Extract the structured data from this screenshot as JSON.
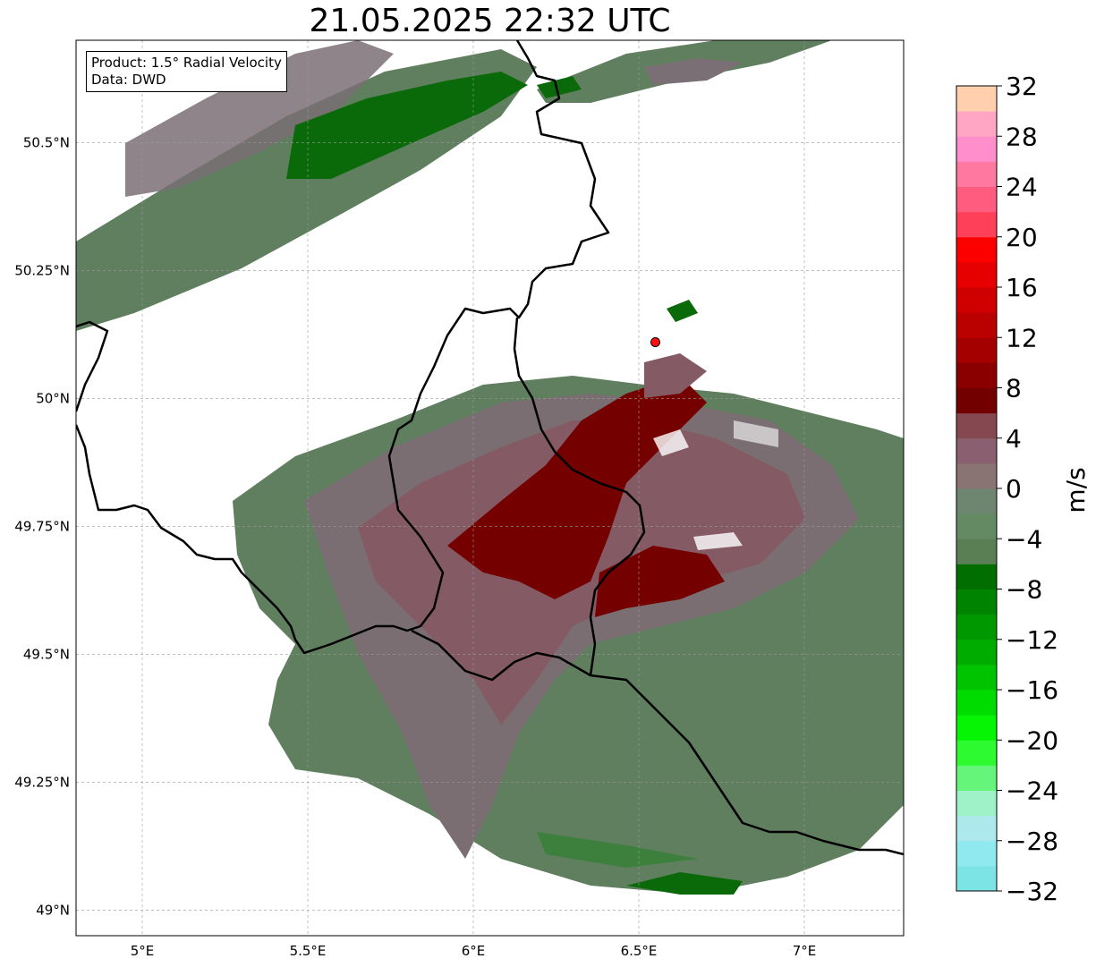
{
  "title": "21.05.2025 22:32 UTC",
  "info": {
    "product": "Product: 1.5° Radial Velocity",
    "source": "Data: DWD"
  },
  "axes": {
    "lon_ticks": [
      {
        "value": 5.0,
        "label": "5°E"
      },
      {
        "value": 5.5,
        "label": "5.5°E"
      },
      {
        "value": 6.0,
        "label": "6°E"
      },
      {
        "value": 6.5,
        "label": "6.5°E"
      },
      {
        "value": 7.0,
        "label": "7°E"
      }
    ],
    "lat_ticks": [
      {
        "value": 50.5,
        "label": "50.5°N"
      },
      {
        "value": 50.25,
        "label": "50.25°N"
      },
      {
        "value": 50.0,
        "label": "50°N"
      },
      {
        "value": 49.75,
        "label": "49.75°N"
      },
      {
        "value": 49.5,
        "label": "49.5°N"
      },
      {
        "value": 49.25,
        "label": "49.25°N"
      },
      {
        "value": 49.0,
        "label": "49°N"
      }
    ],
    "lon_range": [
      4.8,
      7.3
    ],
    "lat_range": [
      48.95,
      50.7
    ],
    "grid": true
  },
  "radar_site": {
    "lon": 6.55,
    "lat": 50.11,
    "color": "#ff1010"
  },
  "colorbar": {
    "unit": "m/s",
    "min": -32,
    "max": 32,
    "tick_values": [
      32,
      28,
      24,
      20,
      16,
      12,
      8,
      4,
      0,
      -4,
      -8,
      -12,
      -16,
      -20,
      -24,
      -28,
      -32
    ],
    "tick_labels": [
      "32",
      "28",
      "24",
      "20",
      "16",
      "12",
      "8",
      "4",
      "0",
      "−4",
      "−8",
      "−12",
      "−16",
      "−20",
      "−24",
      "−28",
      "−32"
    ],
    "colors": [
      "#7de4e6",
      "#90e9ee",
      "#ade9ec",
      "#9ff2c8",
      "#65f57a",
      "#2dfb30",
      "#05f505",
      "#00db00",
      "#00c400",
      "#00ac00",
      "#009800",
      "#008400",
      "#006e00",
      "#5a7f55",
      "#648a64",
      "#6e8670",
      "#8a7373",
      "#8a6070",
      "#864850",
      "#720000",
      "#8a0000",
      "#a40000",
      "#bb0000",
      "#d00000",
      "#e60000",
      "#fc0000",
      "#ff4058",
      "#ff5c80",
      "#ff78a0",
      "#ff8ecc",
      "#ffa6c4",
      "#ffcfae"
    ]
  }
}
